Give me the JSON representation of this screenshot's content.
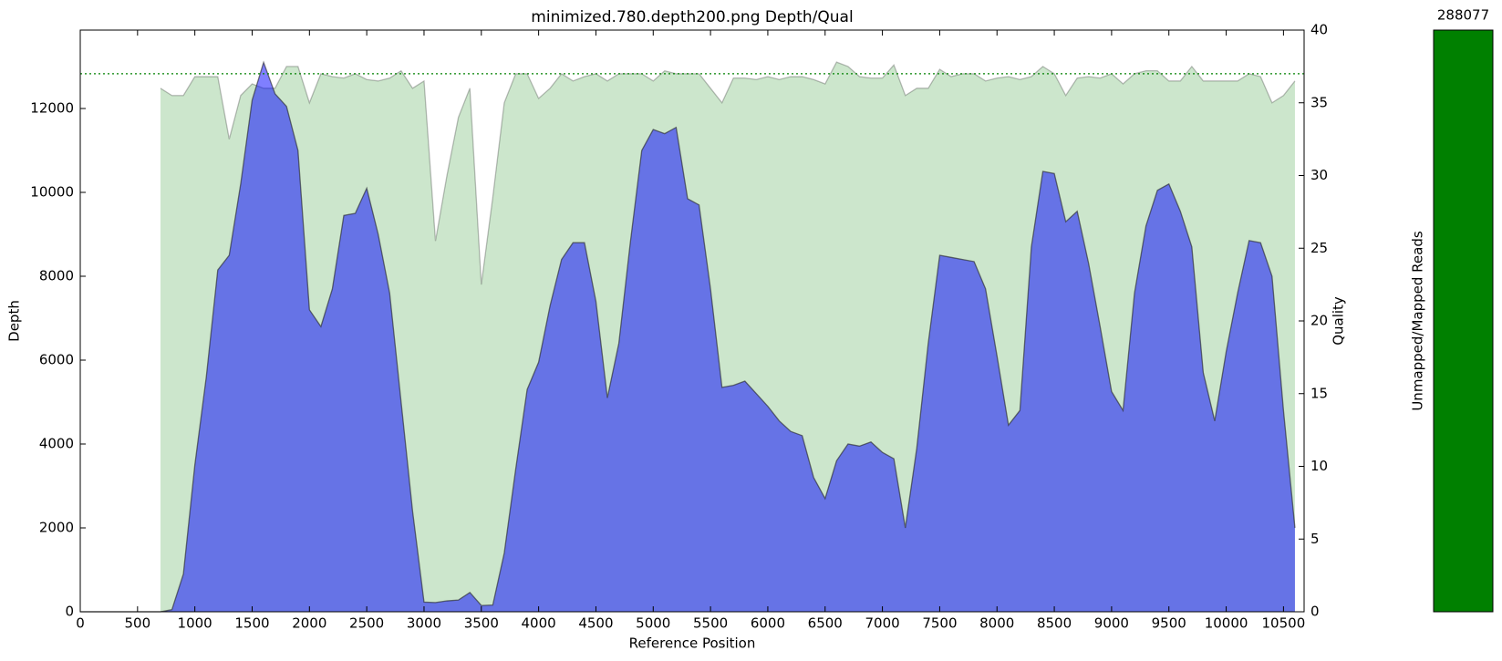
{
  "chart_data": [
    {
      "type": "area",
      "title": "minimized.780.depth200.png Depth/Qual",
      "xlabel": "Reference Position",
      "ylabel": "Depth",
      "y2label": "Quality",
      "x": [
        0,
        100,
        200,
        300,
        400,
        500,
        600,
        700,
        800,
        900,
        1000,
        1100,
        1200,
        1300,
        1400,
        1500,
        1600,
        1700,
        1800,
        1900,
        2000,
        2100,
        2200,
        2300,
        2400,
        2500,
        2600,
        2700,
        2800,
        2900,
        3000,
        3100,
        3200,
        3300,
        3400,
        3500,
        3600,
        3700,
        3800,
        3900,
        4000,
        4100,
        4200,
        4300,
        4400,
        4500,
        4600,
        4700,
        4800,
        4900,
        5000,
        5100,
        5200,
        5300,
        5400,
        5500,
        5600,
        5700,
        5800,
        5900,
        6000,
        6100,
        6200,
        6300,
        6400,
        6500,
        6600,
        6700,
        6800,
        6900,
        7000,
        7100,
        7200,
        7300,
        7400,
        7500,
        7600,
        7700,
        7800,
        7900,
        8000,
        8100,
        8200,
        8300,
        8400,
        8500,
        8600,
        8700,
        8800,
        8900,
        9000,
        9100,
        9200,
        9300,
        9400,
        9500,
        9600,
        9700,
        9800,
        9900,
        10000,
        10100,
        10200,
        10300,
        10400,
        10500,
        10600
      ],
      "series": [
        {
          "axis": "y2",
          "color": "#008000",
          "values": [
            null,
            null,
            null,
            null,
            null,
            null,
            null,
            36,
            35.5,
            35.5,
            36.8,
            36.8,
            36.8,
            32.5,
            35.5,
            36.3,
            36,
            36,
            37.5,
            37.5,
            35,
            37,
            36.8,
            36.7,
            37,
            36.6,
            36.5,
            36.7,
            37.2,
            36,
            36.5,
            25.5,
            30,
            34,
            36,
            22.5,
            28.5,
            35,
            37,
            37,
            35.3,
            36,
            37,
            36.5,
            36.8,
            37,
            36.5,
            37,
            37,
            37,
            36.5,
            37.2,
            37,
            37,
            37,
            36,
            35,
            36.7,
            36.7,
            36.6,
            36.8,
            36.6,
            36.8,
            36.8,
            36.6,
            36.3,
            37.8,
            37.5,
            36.8,
            36.7,
            36.7,
            37.6,
            35.5,
            36,
            36,
            37.3,
            36.8,
            37,
            37,
            36.5,
            36.7,
            36.8,
            36.6,
            36.8,
            37.5,
            37,
            35.5,
            36.7,
            36.8,
            36.7,
            37,
            36.3,
            37,
            37.2,
            37.2,
            36.5,
            36.5,
            37.5,
            36.5,
            36.5,
            36.5,
            36.5,
            37,
            36.8,
            35,
            35.5,
            36.5
          ]
        },
        {
          "axis": "y",
          "color": "#0000ff",
          "values": [
            0,
            0,
            0,
            0,
            0,
            0,
            0,
            0,
            50,
            900,
            3500,
            5600,
            8150,
            8500,
            10200,
            12200,
            13100,
            12350,
            12050,
            11000,
            7200,
            6800,
            7700,
            9450,
            9500,
            10100,
            9000,
            7600,
            5000,
            2400,
            230,
            220,
            260,
            280,
            460,
            150,
            160,
            1400,
            3400,
            5300,
            5950,
            7300,
            8400,
            8800,
            8800,
            7400,
            5100,
            6400,
            8800,
            11000,
            11500,
            11400,
            11550,
            9850,
            9700,
            7700,
            5350,
            5400,
            5500,
            5200,
            4900,
            4550,
            4300,
            4200,
            3200,
            2700,
            3600,
            4000,
            3950,
            4050,
            3800,
            3650,
            2000,
            3900,
            6400,
            8500,
            8450,
            8400,
            8350,
            7700,
            6100,
            4450,
            4800,
            8700,
            10500,
            10450,
            9300,
            9550,
            8300,
            6800,
            5250,
            4800,
            7600,
            9200,
            10050,
            10200,
            9550,
            8700,
            5700,
            4550,
            6200,
            7600,
            8850,
            8800,
            8000,
            4800,
            2000
          ]
        }
      ],
      "hline": {
        "value": 37,
        "axis": "y2",
        "color": "#008000"
      },
      "xlim": [
        0,
        10680
      ],
      "ylim": [
        0,
        13870
      ],
      "y2lim": [
        0,
        40
      ],
      "xticks": [
        0,
        500,
        1000,
        1500,
        2000,
        2500,
        3000,
        3500,
        4000,
        4500,
        5000,
        5500,
        6000,
        6500,
        7000,
        7500,
        8000,
        8500,
        9000,
        9500,
        10000,
        10500
      ],
      "yticks": [
        0,
        2000,
        4000,
        6000,
        8000,
        10000,
        12000
      ],
      "y2ticks": [
        0,
        5,
        10,
        15,
        20,
        25,
        30,
        35,
        40
      ]
    },
    {
      "type": "stacked_bar",
      "ylabel": "Unmapped/Mapped Reads",
      "series": [
        {
          "color": "#cc0000",
          "values": [
            0
          ]
        },
        {
          "color": "#008000",
          "values": [
            288077
          ]
        }
      ],
      "ylim": [
        0,
        288077
      ]
    }
  ]
}
